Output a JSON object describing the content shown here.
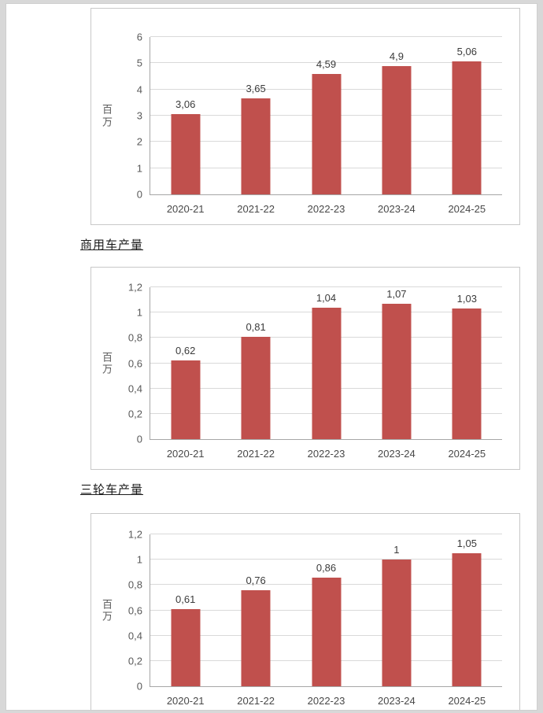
{
  "page": {
    "sections": [
      {
        "label": "商用车产量"
      },
      {
        "label": "三轮车产量"
      }
    ]
  },
  "chart_data": [
    {
      "type": "bar",
      "title": "",
      "categories": [
        "2020-21",
        "2021-22",
        "2022-23",
        "2023-24",
        "2024-25"
      ],
      "values": [
        3.06,
        3.65,
        4.59,
        4.9,
        5.06
      ],
      "value_labels": [
        "3,06",
        "3,65",
        "4,59",
        "4,9",
        "5,06"
      ],
      "xlabel": "",
      "ylabel": "百万",
      "ylim": [
        0,
        6
      ],
      "yticks": [
        0,
        1,
        2,
        3,
        4,
        5,
        6
      ],
      "ytick_labels": [
        "0",
        "1",
        "2",
        "3",
        "4",
        "5",
        "6"
      ],
      "bar_color": "#c0504d",
      "grid": true,
      "legend": "none"
    },
    {
      "type": "bar",
      "title": "商用车产量",
      "categories": [
        "2020-21",
        "2021-22",
        "2022-23",
        "2023-24",
        "2024-25"
      ],
      "values": [
        0.62,
        0.81,
        1.04,
        1.07,
        1.03
      ],
      "value_labels": [
        "0,62",
        "0,81",
        "1,04",
        "1,07",
        "1,03"
      ],
      "xlabel": "",
      "ylabel": "百万",
      "ylim": [
        0,
        1.2
      ],
      "yticks": [
        0,
        0.2,
        0.4,
        0.6,
        0.8,
        1,
        1.2
      ],
      "ytick_labels": [
        "0",
        "0,2",
        "0,4",
        "0,6",
        "0,8",
        "1",
        "1,2"
      ],
      "bar_color": "#c0504d",
      "grid": true,
      "legend": "none"
    },
    {
      "type": "bar",
      "title": "三轮车产量",
      "categories": [
        "2020-21",
        "2021-22",
        "2022-23",
        "2023-24",
        "2024-25"
      ],
      "values": [
        0.61,
        0.76,
        0.86,
        1,
        1.05
      ],
      "value_labels": [
        "0,61",
        "0,76",
        "0,86",
        "1",
        "1,05"
      ],
      "xlabel": "",
      "ylabel": "百万",
      "ylim": [
        0,
        1.2
      ],
      "yticks": [
        0,
        0.2,
        0.4,
        0.6,
        0.8,
        1,
        1.2
      ],
      "ytick_labels": [
        "0",
        "0,2",
        "0,4",
        "0,6",
        "0,8",
        "1",
        "1,2"
      ],
      "bar_color": "#c0504d",
      "grid": true,
      "legend": "none"
    }
  ]
}
